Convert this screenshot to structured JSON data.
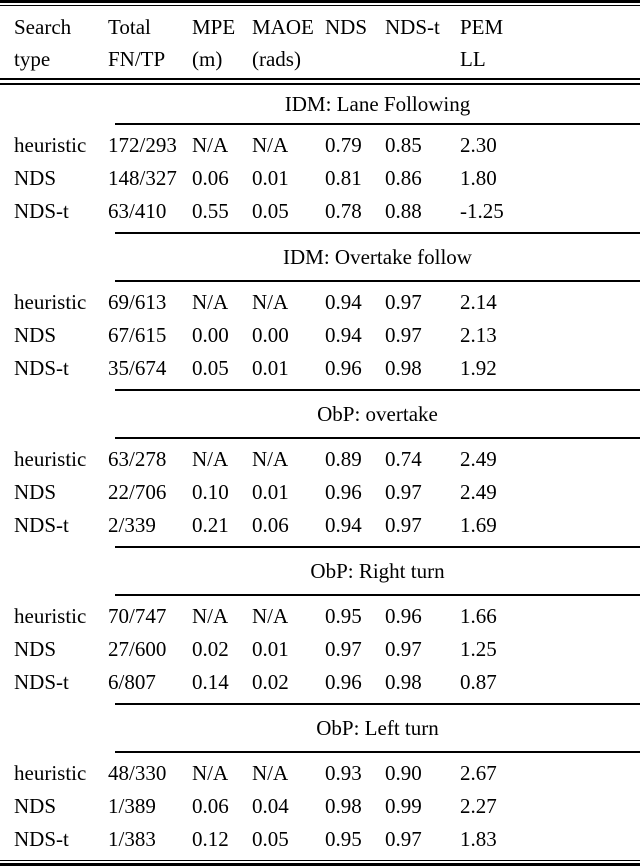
{
  "colors": {
    "background": "#ffffff",
    "text": "#000000",
    "rule": "#000000"
  },
  "table": {
    "columns": [
      {
        "line1": "Search",
        "line2": "type"
      },
      {
        "line1": "Total",
        "line2": "FN/TP"
      },
      {
        "line1": "MPE",
        "line2": "(m)"
      },
      {
        "line1": "MAOE",
        "line2": "(rads)"
      },
      {
        "line1": "NDS",
        "line2": ""
      },
      {
        "line1": "NDS-t",
        "line2": ""
      },
      {
        "line1": "PEM",
        "line2": "LL"
      }
    ],
    "sections": [
      {
        "title": "IDM: Lane Following",
        "rows": [
          [
            "heuristic",
            "172/293",
            "N/A",
            "N/A",
            "0.79",
            "0.85",
            "2.30"
          ],
          [
            "NDS",
            "148/327",
            "0.06",
            "0.01",
            "0.81",
            "0.86",
            "1.80"
          ],
          [
            "NDS-t",
            "63/410",
            "0.55",
            "0.05",
            "0.78",
            "0.88",
            "-1.25"
          ]
        ]
      },
      {
        "title": "IDM: Overtake follow",
        "rows": [
          [
            "heuristic",
            "69/613",
            "N/A",
            "N/A",
            "0.94",
            "0.97",
            "2.14"
          ],
          [
            "NDS",
            "67/615",
            "0.00",
            "0.00",
            "0.94",
            "0.97",
            "2.13"
          ],
          [
            "NDS-t",
            "35/674",
            "0.05",
            "0.01",
            "0.96",
            "0.98",
            "1.92"
          ]
        ]
      },
      {
        "title": "ObP: overtake",
        "rows": [
          [
            "heuristic",
            "63/278",
            "N/A",
            "N/A",
            "0.89",
            "0.74",
            "2.49"
          ],
          [
            "NDS",
            "22/706",
            "0.10",
            "0.01",
            "0.96",
            "0.97",
            "2.49"
          ],
          [
            "NDS-t",
            "2/339",
            "0.21",
            "0.06",
            "0.94",
            "0.97",
            "1.69"
          ]
        ]
      },
      {
        "title": "ObP: Right turn",
        "rows": [
          [
            "heuristic",
            "70/747",
            "N/A",
            "N/A",
            "0.95",
            "0.96",
            "1.66"
          ],
          [
            "NDS",
            "27/600",
            "0.02",
            "0.01",
            "0.97",
            "0.97",
            "1.25"
          ],
          [
            "NDS-t",
            "6/807",
            "0.14",
            "0.02",
            "0.96",
            "0.98",
            "0.87"
          ]
        ]
      },
      {
        "title": "ObP: Left turn",
        "rows": [
          [
            "heuristic",
            "48/330",
            "N/A",
            "N/A",
            "0.93",
            "0.90",
            "2.67"
          ],
          [
            "NDS",
            "1/389",
            "0.06",
            "0.04",
            "0.98",
            "0.99",
            "2.27"
          ],
          [
            "NDS-t",
            "1/383",
            "0.12",
            "0.05",
            "0.95",
            "0.97",
            "1.83"
          ]
        ]
      }
    ]
  }
}
